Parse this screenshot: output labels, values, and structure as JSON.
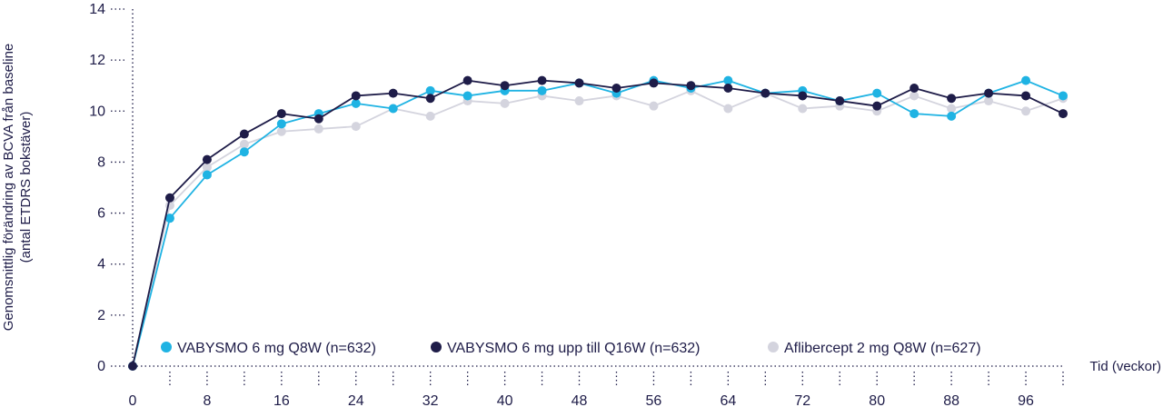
{
  "chart_data": {
    "type": "line",
    "ylabel_lines": [
      "Genomsnittlig förändring av BCVA från baseline",
      "(antal ETDRS bokstäver)"
    ],
    "xlabel": "Tid (veckor)",
    "ylim": [
      0,
      14
    ],
    "xlim": [
      0,
      100
    ],
    "y_ticks": [
      "0",
      "2",
      "4",
      "6",
      "8",
      "10",
      "12",
      "14"
    ],
    "x_ticks": [
      "0",
      "8",
      "16",
      "24",
      "32",
      "40",
      "48",
      "56",
      "64",
      "72",
      "80",
      "88",
      "96"
    ],
    "grid": false,
    "legend_position": "bottom",
    "x": [
      0,
      4,
      8,
      12,
      16,
      20,
      24,
      28,
      32,
      36,
      40,
      44,
      48,
      52,
      56,
      60,
      64,
      68,
      72,
      76,
      80,
      84,
      88,
      92,
      96,
      100
    ],
    "series": [
      {
        "name": "Aflibercept 2 mg Q8W (n=627)",
        "color": "#d4d4de",
        "values": [
          0,
          6.3,
          7.8,
          8.7,
          9.2,
          9.3,
          9.4,
          10.1,
          9.8,
          10.4,
          10.3,
          10.6,
          10.4,
          10.6,
          10.2,
          10.8,
          10.1,
          10.7,
          10.1,
          10.2,
          10.0,
          10.6,
          10.1,
          10.4,
          10.0,
          10.5
        ]
      },
      {
        "name": "VABYSMO 6 mg Q8W (n=632)",
        "color": "#1fb3e3",
        "values": [
          0,
          5.8,
          7.5,
          8.4,
          9.5,
          9.9,
          10.3,
          10.1,
          10.8,
          10.6,
          10.8,
          10.8,
          11.1,
          10.7,
          11.2,
          10.9,
          11.2,
          10.7,
          10.8,
          10.4,
          10.7,
          9.9,
          9.8,
          10.7,
          11.2,
          10.6
        ]
      },
      {
        "name": "VABYSMO 6 mg upp till Q16W (n=632)",
        "color": "#1e1c48",
        "values": [
          0,
          6.6,
          8.1,
          9.1,
          9.9,
          9.7,
          10.6,
          10.7,
          10.5,
          11.2,
          11.0,
          11.2,
          11.1,
          10.9,
          11.1,
          11.0,
          10.9,
          10.7,
          10.6,
          10.4,
          10.2,
          10.9,
          10.5,
          10.7,
          10.6,
          9.9
        ]
      }
    ],
    "legend": [
      {
        "label": "VABYSMO 6 mg Q8W (n=632)",
        "color": "#1fb3e3"
      },
      {
        "label": "VABYSMO 6 mg upp till Q16W (n=632)",
        "color": "#1e1c48"
      },
      {
        "label": "Aflibercept 2 mg Q8W (n=627)",
        "color": "#d4d4de"
      }
    ]
  }
}
